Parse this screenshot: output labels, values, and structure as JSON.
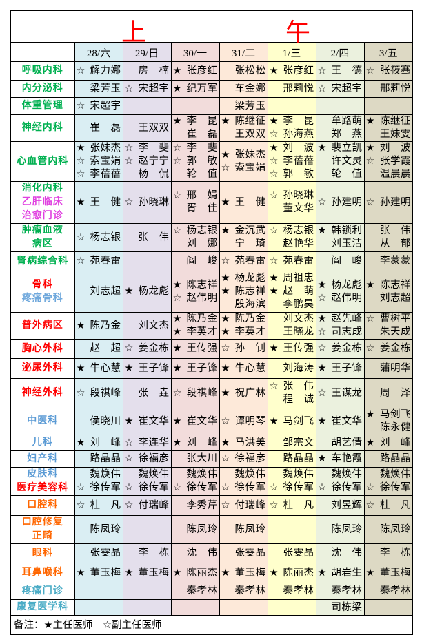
{
  "title": [
    "上",
    "午"
  ],
  "days": [
    "28/六",
    "29/日",
    "30/一",
    "31/二",
    "1/三",
    "2/四",
    "3/五"
  ],
  "colors": {
    "title": "#ff0000",
    "green": "#00b050",
    "magenta": "#e040e0",
    "red": "#ff0000",
    "lightblue": "#6fa8dc",
    "blue": "#5b9bd5",
    "orange": "#ff6600",
    "teal": "#4bacc6"
  },
  "rows": [
    {
      "dept": [
        {
          "text": "呼吸内科",
          "color": "#00b050"
        }
      ],
      "cells": [
        [
          "☆解力娜"
        ],
        [
          "房　楠"
        ],
        [
          "★张彦红"
        ],
        [
          "张松松"
        ],
        [
          "★张彦红"
        ],
        [
          "☆王　德"
        ],
        [
          "☆张筱骞"
        ]
      ]
    },
    {
      "dept": [
        {
          "text": "内分泌科",
          "color": "#00b050"
        }
      ],
      "cells": [
        [
          "梁芳玉"
        ],
        [
          "☆宋超宇"
        ],
        [
          "★纪万军"
        ],
        [
          "车金娜"
        ],
        [
          "邢莉悦"
        ],
        [
          "☆宋超宇"
        ],
        [
          "邢莉悦"
        ]
      ]
    },
    {
      "dept": [
        {
          "text": "体重管理",
          "color": "#00b050"
        }
      ],
      "cells": [
        [
          "☆宋超宇"
        ],
        [],
        [],
        [
          "梁芳玉"
        ],
        [],
        [],
        []
      ]
    },
    {
      "dept": [
        {
          "text": "神经内科",
          "color": "#00b050"
        }
      ],
      "cells": [
        [
          "崔　磊"
        ],
        [
          "王双双"
        ],
        [
          "★李　昆",
          "崔　磊"
        ],
        [
          "★陈继征",
          "王双双"
        ],
        [
          "★李　昆",
          "☆孙海燕"
        ],
        [
          "牟路萌",
          "郑　燕"
        ],
        [
          "★陈继征",
          "王妹雯"
        ]
      ]
    },
    {
      "dept": [
        {
          "text": "心血管内科",
          "color": "#00b050"
        }
      ],
      "cells": [
        [
          "★张妹杰",
          "☆索宝娟",
          "☆李蓓蓓"
        ],
        [
          "☆李　斐",
          "☆赵宁宁",
          "杨　侃"
        ],
        [
          "☆李　斐",
          "☆郭　敏",
          "轮　值"
        ],
        [
          "★张妹杰",
          "☆索宝娟"
        ],
        [
          "★刘　波",
          "☆李蓓蓓",
          "☆郭　敏"
        ],
        [
          "★裴立凯",
          "许文灵",
          "轮　值"
        ],
        [
          "★刘　波",
          "☆张学霞",
          "温晨晨"
        ]
      ]
    },
    {
      "dept": [
        {
          "text": "消化内科",
          "color": "#00b050"
        },
        {
          "text": "乙肝临床",
          "color": "#e040e0"
        },
        {
          "text": "治愈门诊",
          "color": "#e040e0"
        }
      ],
      "cells": [
        [
          "★王　健"
        ],
        [
          "☆孙晓琳"
        ],
        [
          "☆邢　娟",
          "胥　佳"
        ],
        [
          "★王　健"
        ],
        [
          "☆孙晓琳",
          "董文华"
        ],
        [
          "☆孙建明"
        ],
        [
          "☆孙建明"
        ]
      ]
    },
    {
      "dept": [
        {
          "text": "肿瘤血液",
          "color": "#00b050"
        },
        {
          "text": "病区",
          "color": "#00b050"
        }
      ],
      "cells": [
        [
          "☆杨志银"
        ],
        [
          "张　伟"
        ],
        [
          "☆杨志银",
          "刘　娜"
        ],
        [
          "★金沉武",
          "宁　琦"
        ],
        [
          "☆杨志银",
          "赵艳华"
        ],
        [
          "★韩锁利",
          "刘玉洁"
        ],
        [
          "张　伟",
          "从　郁"
        ]
      ]
    },
    {
      "dept": [
        {
          "text": "肾病综合科",
          "color": "#00b050"
        }
      ],
      "cells": [
        [
          "☆苑春雷"
        ],
        [],
        [
          "阎　峻"
        ],
        [
          "☆苑春雷"
        ],
        [
          "☆苑春雷"
        ],
        [
          "阎　峻"
        ],
        [
          "李蒙蒙"
        ]
      ]
    },
    {
      "dept": [
        {
          "text": "骨科",
          "color": "#ff0000"
        },
        {
          "text": "疼痛骨科",
          "color": "#6fa8dc"
        }
      ],
      "cells": [
        [
          "刘志超"
        ],
        [
          "★杨龙彪"
        ],
        [
          "★陈志祥",
          "☆赵伟明"
        ],
        [
          "★杨龙彪",
          "★陈志祥",
          "殷海滨"
        ],
        [
          "★周祖忠",
          "★赵　萌",
          "李鹏昊"
        ],
        [
          "★杨龙彪",
          "☆赵伟明"
        ],
        [
          "★陈志祥",
          "刘志超"
        ]
      ]
    },
    {
      "dept": [
        {
          "text": "普外病区",
          "color": "#ff0000"
        }
      ],
      "cells": [
        [
          "★陈乃金"
        ],
        [
          "刘文杰"
        ],
        [
          "★陈乃金",
          "★李英才"
        ],
        [
          "★陈乃金",
          "★李英才"
        ],
        [
          "刘文杰",
          "王晓龙"
        ],
        [
          "★赵先峰",
          "☆司志成"
        ],
        [
          "☆曹树平",
          "朱天成"
        ]
      ]
    },
    {
      "dept": [
        {
          "text": "胸心外科",
          "color": "#ff0000"
        }
      ],
      "cells": [
        [
          "赵　超"
        ],
        [
          "☆姜金栋"
        ],
        [
          "★王传强"
        ],
        [
          "☆孙　钊"
        ],
        [
          "★王传强"
        ],
        [
          "☆姜金栋"
        ],
        [
          "☆姜金栋"
        ]
      ]
    },
    {
      "dept": [
        {
          "text": "泌尿外科",
          "color": "#ff0000"
        }
      ],
      "cells": [
        [
          "★牛心慧"
        ],
        [
          "★王子锋"
        ],
        [
          "★王子锋"
        ],
        [
          "★牛心慧"
        ],
        [
          "刘海涛"
        ],
        [
          "★王子锋"
        ],
        [
          "蒲明华"
        ]
      ]
    },
    {
      "dept": [
        {
          "text": "神经外科",
          "color": "#ff0000"
        }
      ],
      "cells": [
        [
          "☆段祺峰"
        ],
        [
          "张　垚"
        ],
        [
          "☆段祺峰"
        ],
        [
          "★祝广林"
        ],
        [
          "☆张　伟",
          "程　诚"
        ],
        [
          "☆王谋龙"
        ],
        [
          "周　泽"
        ]
      ]
    },
    {
      "dept": [
        {
          "text": "中医科",
          "color": "#5b9bd5"
        }
      ],
      "cells": [
        [
          "侯晓川"
        ],
        [
          "★崔文华"
        ],
        [
          "★崔文华"
        ],
        [
          "☆谭明琴"
        ],
        [
          "★马剑飞"
        ],
        [
          "★崔文华"
        ],
        [
          "★马剑飞",
          "陈永健"
        ]
      ]
    },
    {
      "dept": [
        {
          "text": "儿科",
          "color": "#5b9bd5"
        }
      ],
      "cells": [
        [
          "★刘　峰"
        ],
        [
          "☆李连华"
        ],
        [
          "★刘　峰"
        ],
        [
          "★马洪美"
        ],
        [
          "邹宗文"
        ],
        [
          "胡艺倩"
        ],
        [
          "★刘　峰"
        ]
      ]
    },
    {
      "dept": [
        {
          "text": "妇产科",
          "color": "#5b9bd5"
        }
      ],
      "cells": [
        [
          "路晶晶"
        ],
        [
          "☆徐福彦"
        ],
        [
          "张大川"
        ],
        [
          "☆徐福彦"
        ],
        [
          "路晶晶"
        ],
        [
          "★车艳霞"
        ],
        [
          "路晶晶"
        ]
      ]
    },
    {
      "dept": [
        {
          "text": "皮肤科",
          "color": "#5b9bd5"
        },
        {
          "text": "医疗美容科",
          "color": "#ff0000"
        }
      ],
      "cells": [
        [
          "魏焕伟",
          "☆徐传军"
        ],
        [
          "魏焕伟",
          "☆徐传军"
        ],
        [
          "魏焕伟",
          "☆徐传军"
        ],
        [
          "魏焕伟",
          "☆徐传军"
        ],
        [
          "魏焕伟",
          "☆徐传军"
        ],
        [
          "魏焕伟",
          "☆徐传军"
        ],
        [
          "魏焕伟",
          "☆徐传军"
        ]
      ]
    },
    {
      "dept": [
        {
          "text": "口腔科",
          "color": "#ff6600"
        }
      ],
      "cells": [
        [
          "☆杜　凡"
        ],
        [
          "☆付瑞峰"
        ],
        [
          "李秀芹"
        ],
        [
          "☆付瑞峰"
        ],
        [
          "☆杜　凡"
        ],
        [
          "刘昱辉"
        ],
        [
          "☆杜　凡"
        ]
      ]
    },
    {
      "dept": [
        {
          "text": "口腔修复",
          "color": "#ff6600"
        },
        {
          "text": "正畸",
          "color": "#ff6600"
        }
      ],
      "cells": [
        [
          "陈凤玲"
        ],
        [],
        [
          "陈凤玲"
        ],
        [
          "陈凤玲"
        ],
        [],
        [
          "陈凤玲"
        ],
        [
          "陈凤玲"
        ]
      ]
    },
    {
      "dept": [
        {
          "text": "眼科",
          "color": "#ff6600"
        }
      ],
      "cells": [
        [
          "张雯晶"
        ],
        [
          "李　栋"
        ],
        [
          "沈　伟"
        ],
        [
          "张雯晶"
        ],
        [
          "张雯晶"
        ],
        [
          "沈　伟"
        ],
        [
          "李　栋"
        ]
      ]
    },
    {
      "dept": [
        {
          "text": "耳鼻喉科",
          "color": "#ff6600"
        }
      ],
      "cells": [
        [
          "★董玉梅"
        ],
        [
          "★董玉梅"
        ],
        [
          "★陈丽杰"
        ],
        [
          "★董玉梅"
        ],
        [
          "★陈丽杰"
        ],
        [
          "★胡岩生"
        ],
        [
          "★董玉梅"
        ]
      ]
    },
    {
      "dept": [
        {
          "text": "疼痛门诊",
          "color": "#4bacc6"
        }
      ],
      "cells": [
        [],
        [],
        [
          "秦孝林"
        ],
        [
          "秦孝林"
        ],
        [
          "秦孝林"
        ],
        [
          "秦孝林"
        ],
        [
          "秦孝林"
        ]
      ]
    },
    {
      "dept": [
        {
          "text": "康复医学科",
          "color": "#4bacc6"
        }
      ],
      "cells": [
        [],
        [],
        [],
        [],
        [],
        [
          "司栋梁"
        ],
        []
      ]
    }
  ],
  "footer": "备注：★主任医师　☆副主任医师"
}
